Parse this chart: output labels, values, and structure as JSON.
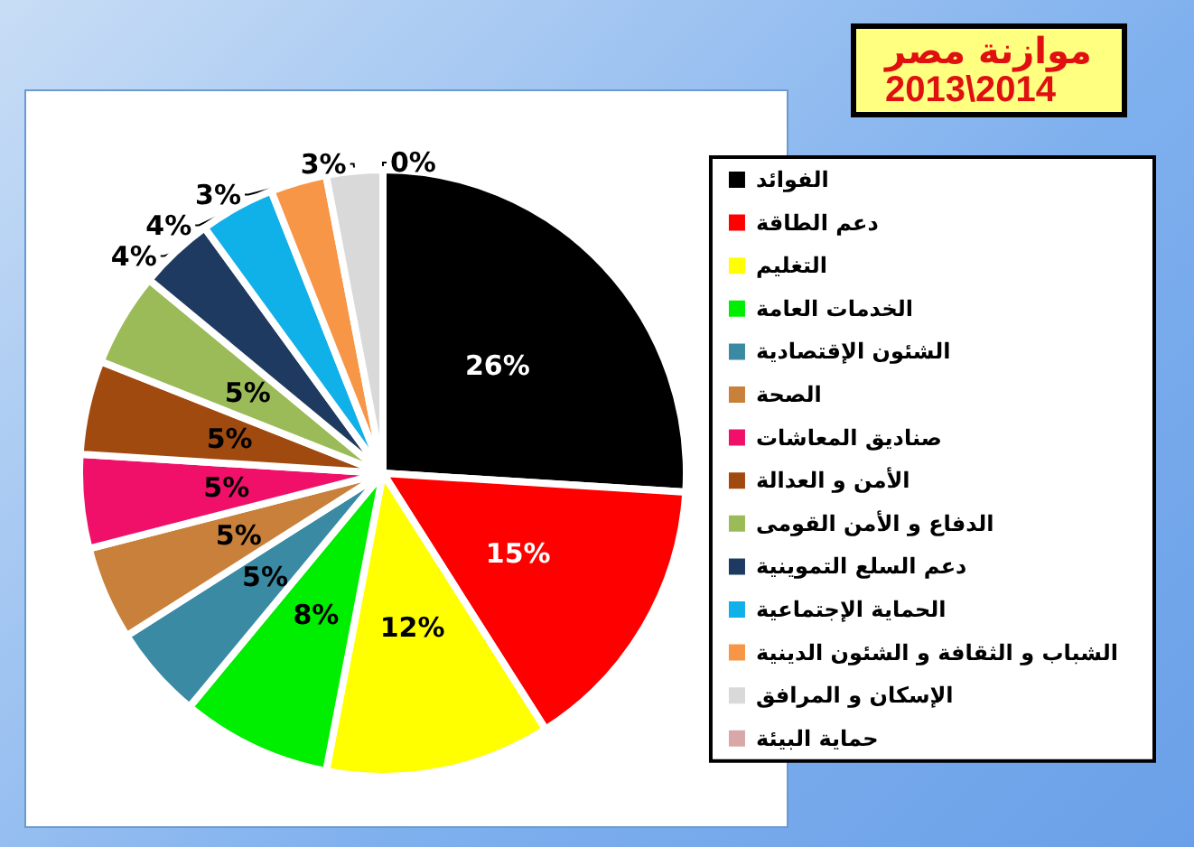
{
  "chart_data": {
    "type": "pie",
    "title": "موازنة مصر",
    "subtitle": "2013\\2014",
    "categories": [
      "الفوائد",
      "دعم الطاقة",
      "التغليم",
      "الخدمات العامة",
      "الشئون الإقتصادية",
      "الصحة",
      "صناديق المعاشات",
      "الأمن و العدالة",
      "الدفاع و الأمن القومى",
      "دعم السلع التموينية",
      "الحماية الإجتماعية",
      "الشباب و الثقافة و الشئون الدينية",
      "الإسكان و المرافق",
      "حماية البيئة"
    ],
    "values": [
      26,
      15,
      12,
      8,
      5,
      5,
      5,
      5,
      5,
      4,
      4,
      3,
      3,
      0
    ],
    "value_labels": [
      "26%",
      "15%",
      "12%",
      "8%",
      "5%",
      "5%",
      "5%",
      "5%",
      "5%",
      "4%",
      "4%",
      "3%",
      "3%",
      "0%"
    ],
    "colors": [
      "#000000",
      "#ff0000",
      "#ffff00",
      "#00ee00",
      "#3a8aa4",
      "#c8803a",
      "#f0106a",
      "#a04a10",
      "#9bbb59",
      "#1f3a60",
      "#10b0e8",
      "#f79646",
      "#d9d9d9",
      "#d8a8a8"
    ],
    "legend": "right"
  }
}
